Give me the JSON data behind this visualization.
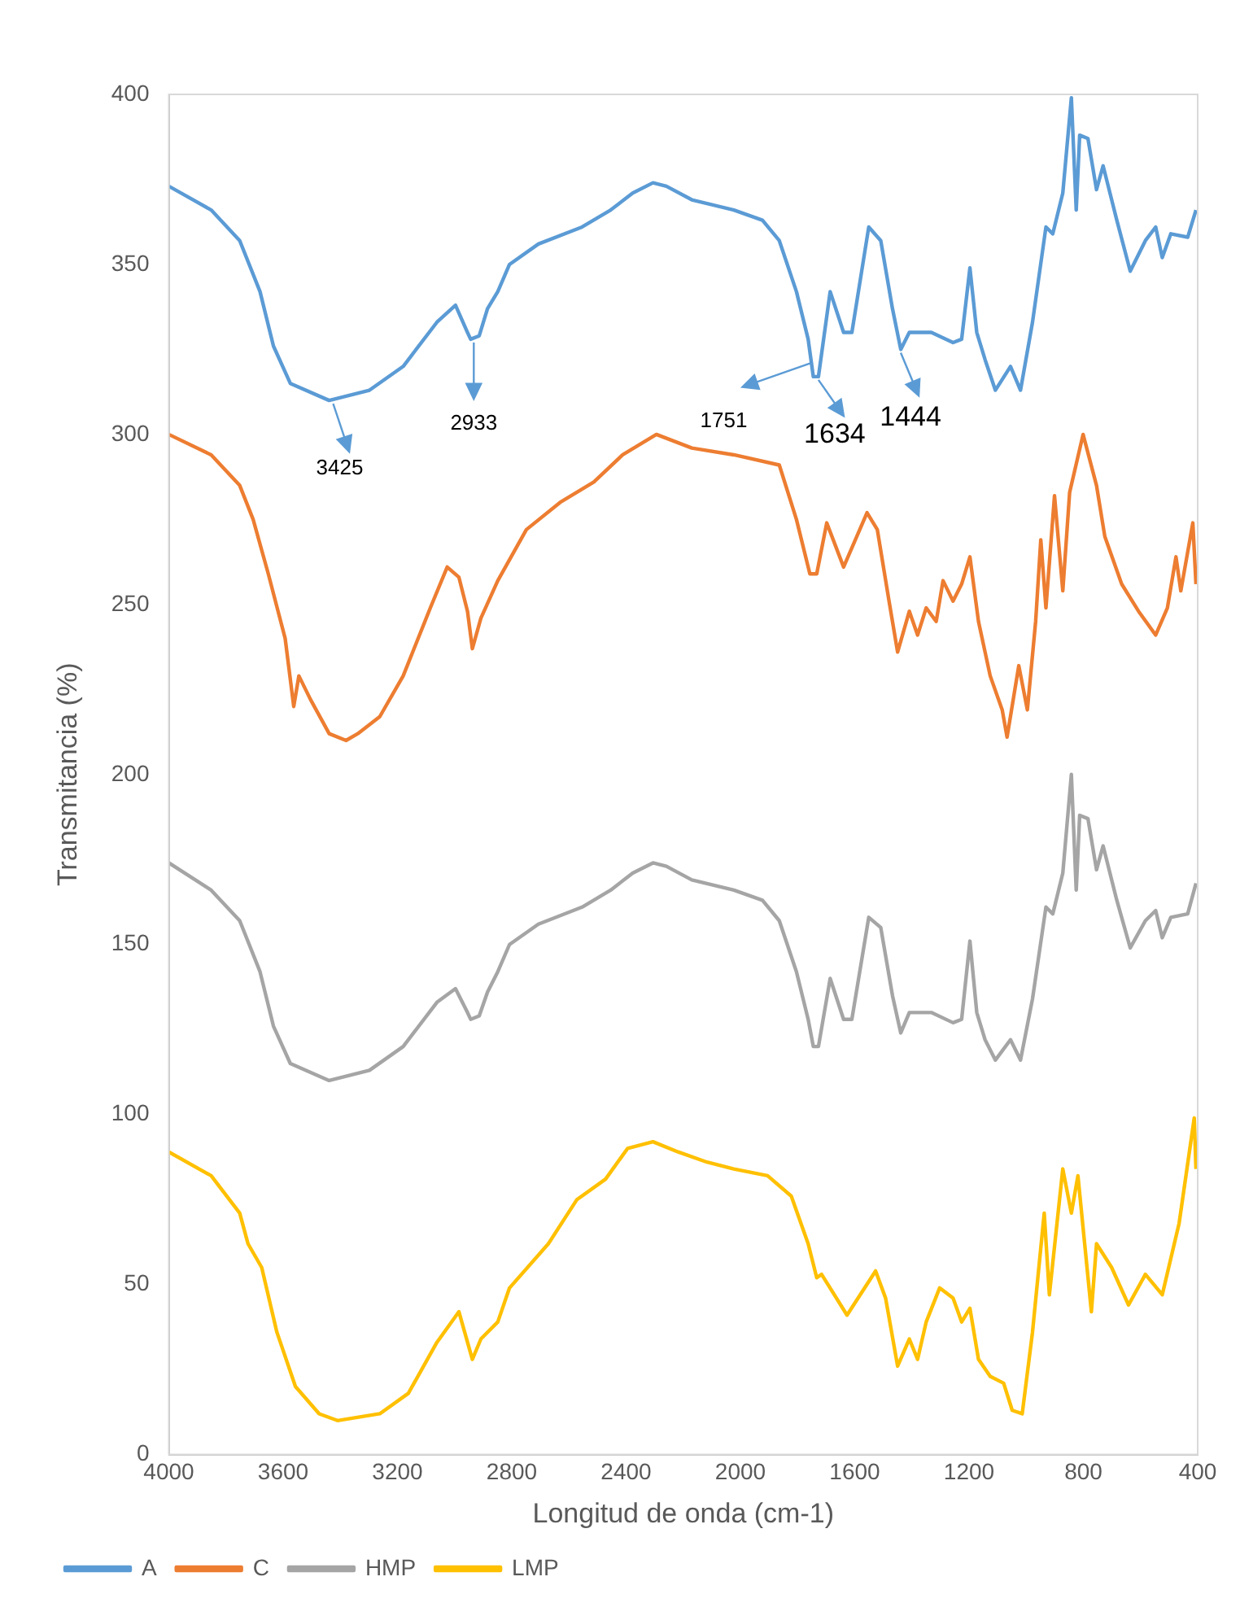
{
  "chart_data": {
    "type": "line",
    "xlabel": "Longitud de onda (cm-1)",
    "ylabel": "Transmitancia (%)",
    "xlim": [
      4000,
      400
    ],
    "xticks": [
      4000,
      3600,
      3200,
      2800,
      2400,
      2000,
      1600,
      1200,
      800,
      400
    ],
    "ylim": [
      0,
      400
    ],
    "yticks": [
      0,
      50,
      100,
      150,
      200,
      250,
      300,
      350,
      400
    ],
    "grid": false,
    "legend": "bottom left",
    "marker": "none",
    "line_style": "solid",
    "x": [
      4000,
      3852,
      3752,
      3681,
      3634,
      3575,
      3439,
      3298,
      3180,
      3062,
      2997,
      2955,
      2944,
      2914,
      2885,
      2849,
      2808,
      2707,
      2554,
      2454,
      2377,
      2306,
      2259,
      2170,
      2023,
      1923,
      1864,
      1804,
      1763,
      1745,
      1727,
      1686,
      1639,
      1610,
      1551,
      1509,
      1468,
      1439,
      1409,
      1332,
      1256,
      1226,
      1197,
      1173,
      1144,
      1108,
      1055,
      1020,
      978,
      931,
      907,
      872,
      842,
      825,
      813,
      784,
      754,
      731,
      683,
      636,
      583,
      547,
      524,
      494,
      435,
      406
    ],
    "series": [
      {
        "name": "A",
        "color": "#5b9bd5",
        "values": [
          373,
          366,
          357,
          342,
          326,
          315,
          310,
          313,
          320,
          333,
          338,
          330,
          328,
          329,
          337,
          342,
          350,
          356,
          361,
          366,
          371,
          374,
          373,
          369,
          366,
          363,
          357,
          342,
          328,
          317,
          317,
          342,
          330,
          330,
          361,
          357,
          337,
          325,
          330,
          330,
          327,
          328,
          349,
          330,
          322,
          313,
          320,
          313,
          333,
          361,
          359,
          371,
          399,
          366,
          388,
          387,
          372,
          379,
          363,
          348,
          357,
          361,
          352,
          359,
          358,
          366
        ]
      },
      {
        "name": "C",
        "color": "#ed7d31",
        "x": [
          4000,
          3852,
          3752,
          3705,
          3652,
          3593,
          3563,
          3545,
          3504,
          3439,
          3380,
          3339,
          3262,
          3180,
          3085,
          3026,
          2985,
          2955,
          2938,
          2908,
          2849,
          2749,
          2631,
          2513,
          2412,
          2294,
          2170,
          2023,
          1864,
          1804,
          1757,
          1733,
          1698,
          1639,
          1557,
          1521,
          1480,
          1450,
          1409,
          1380,
          1350,
          1315,
          1291,
          1256,
          1226,
          1197,
          1167,
          1126,
          1084,
          1067,
          1026,
          996,
          967,
          949,
          931,
          901,
          872,
          848,
          801,
          754,
          725,
          666,
          607,
          547,
          506,
          476,
          459,
          417,
          406
        ],
        "values": [
          300,
          294,
          285,
          275,
          259,
          240,
          220,
          229,
          222,
          212,
          210,
          212,
          217,
          229,
          249,
          261,
          258,
          248,
          237,
          246,
          257,
          272,
          280,
          286,
          294,
          300,
          296,
          294,
          291,
          275,
          259,
          259,
          274,
          261,
          277,
          272,
          251,
          236,
          248,
          241,
          249,
          245,
          257,
          251,
          256,
          264,
          245,
          229,
          219,
          211,
          232,
          219,
          245,
          269,
          249,
          282,
          254,
          283,
          300,
          285,
          270,
          256,
          248,
          241,
          249,
          264,
          254,
          274,
          256
        ]
      },
      {
        "name": "HMP",
        "color": "#a5a5a5",
        "values": [
          174,
          166,
          157,
          142,
          126,
          115,
          110,
          113,
          120,
          133,
          137,
          130,
          128,
          129,
          136,
          142,
          150,
          156,
          161,
          166,
          171,
          174,
          173,
          169,
          166,
          163,
          157,
          142,
          128,
          120,
          120,
          140,
          128,
          128,
          158,
          155,
          135,
          124,
          130,
          130,
          127,
          128,
          151,
          130,
          122,
          116,
          122,
          116,
          134,
          161,
          159,
          171,
          200,
          166,
          188,
          187,
          172,
          179,
          163,
          149,
          157,
          160,
          152,
          158,
          159,
          168
        ]
      },
      {
        "name": "LMP",
        "color": "#ffc000",
        "x": [
          4000,
          3852,
          3752,
          3723,
          3675,
          3622,
          3557,
          3474,
          3410,
          3262,
          3162,
          3062,
          2985,
          2938,
          2908,
          2849,
          2808,
          2672,
          2572,
          2472,
          2395,
          2306,
          2218,
          2117,
          2023,
          1905,
          1822,
          1763,
          1733,
          1716,
          1627,
          1527,
          1492,
          1450,
          1409,
          1380,
          1350,
          1303,
          1256,
          1226,
          1197,
          1167,
          1126,
          1079,
          1049,
          1014,
          978,
          937,
          919,
          872,
          842,
          819,
          772,
          754,
          701,
          642,
          583,
          524,
          465,
          412,
          406
        ],
        "values": [
          89,
          82,
          71,
          62,
          55,
          36,
          20,
          12,
          10,
          12,
          18,
          33,
          42,
          28,
          34,
          39,
          49,
          62,
          75,
          81,
          90,
          92,
          89,
          86,
          84,
          82,
          76,
          62,
          52,
          53,
          41,
          54,
          46,
          26,
          34,
          28,
          39,
          49,
          46,
          39,
          43,
          28,
          23,
          21,
          13,
          12,
          36,
          71,
          47,
          84,
          71,
          82,
          42,
          62,
          55,
          44,
          53,
          47,
          68,
          99,
          84
        ]
      }
    ],
    "annotations": [
      {
        "text": "3425",
        "x": 3425,
        "y": 310
      },
      {
        "text": "2933",
        "x": 2933,
        "y": 328
      },
      {
        "text": "1751",
        "x": 1751,
        "y": 322
      },
      {
        "text": "1634",
        "x": 1727,
        "y": 317
      },
      {
        "text": "1444",
        "x": 1439,
        "y": 325
      }
    ]
  }
}
